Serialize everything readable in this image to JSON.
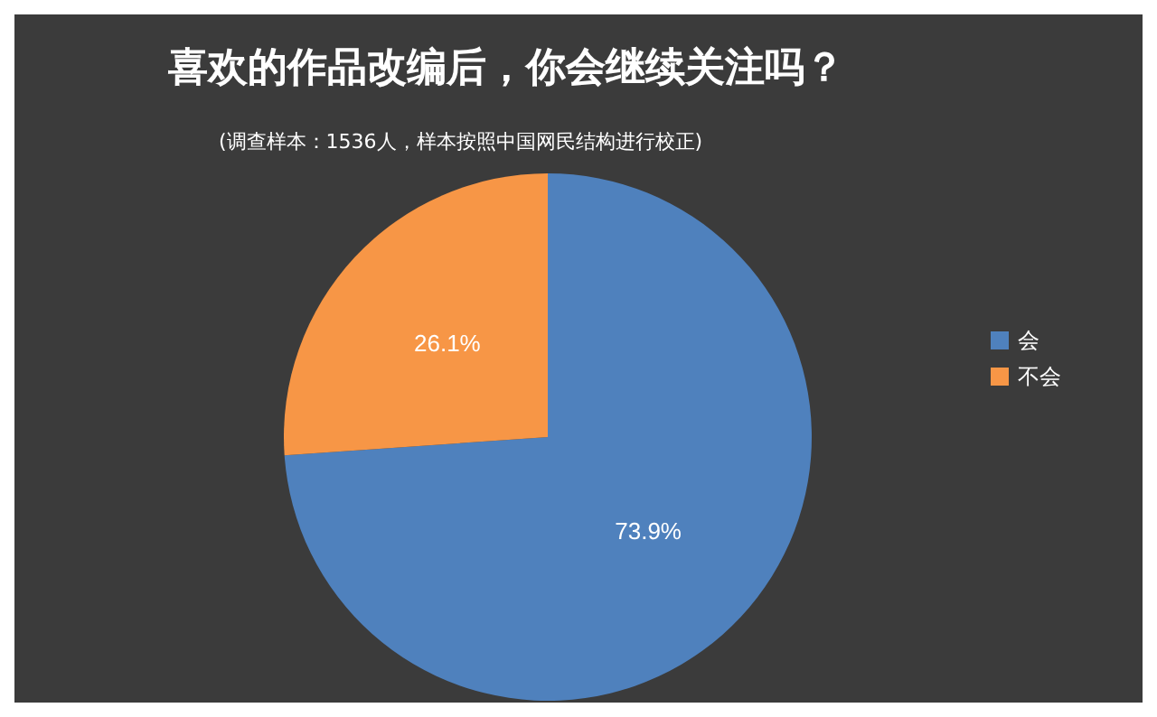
{
  "chart_data": {
    "type": "pie",
    "title": "喜欢的作品改编后，你会继续关注吗？",
    "subtitle": "(调查样本：1536人，样本按照中国网民结构进行校正)",
    "categories": [
      "会",
      "不会"
    ],
    "values": [
      73.9,
      26.1
    ],
    "colors": [
      "#4f81bd",
      "#f79646"
    ],
    "value_labels": [
      "73.9%",
      "26.1%"
    ],
    "legend": "right"
  }
}
